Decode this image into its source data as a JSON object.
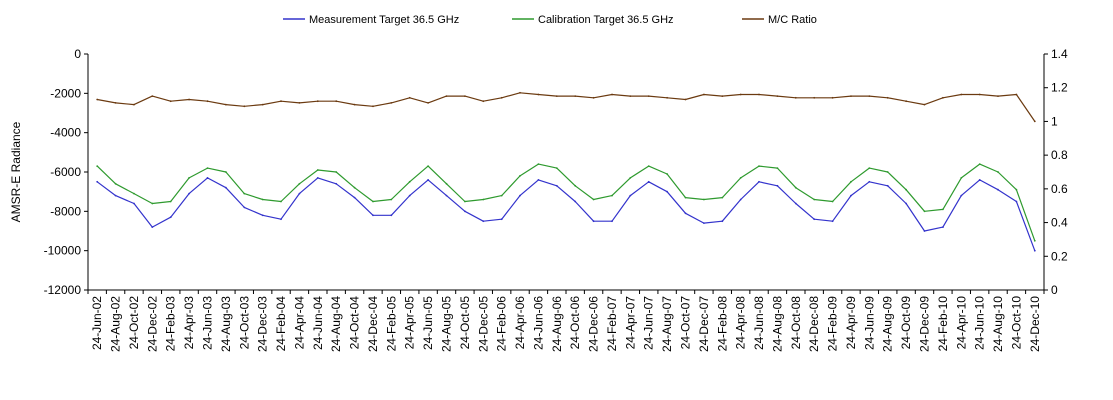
{
  "chart_data": {
    "type": "line",
    "title": "",
    "xlabel": "",
    "ylabel": "AMSR-E Radiance",
    "y2label": "",
    "ylim": [
      -12000,
      0
    ],
    "y2lim": [
      0,
      1.4
    ],
    "yticks": [
      "0",
      "-2000",
      "-4000",
      "-6000",
      "-8000",
      "-10000",
      "-12000"
    ],
    "y2ticks": [
      "1.4",
      "1.2",
      "1",
      "0.8",
      "0.6",
      "0.4",
      "0.2",
      "0"
    ],
    "grid": false,
    "legend_position": "top",
    "categories": [
      "24-Jun-02",
      "24-Aug-02",
      "24-Oct-02",
      "24-Dec-02",
      "24-Feb-03",
      "24-Apr-03",
      "24-Jun-03",
      "24-Aug-03",
      "24-Oct-03",
      "24-Dec-03",
      "24-Feb-04",
      "24-Apr-04",
      "24-Jun-04",
      "24-Aug-04",
      "24-Oct-04",
      "24-Dec-04",
      "24-Feb-05",
      "24-Apr-05",
      "24-Jun-05",
      "24-Aug-05",
      "24-Oct-05",
      "24-Dec-05",
      "24-Feb-06",
      "24-Apr-06",
      "24-Jun-06",
      "24-Aug-06",
      "24-Oct-06",
      "24-Dec-06",
      "24-Feb-07",
      "24-Apr-07",
      "24-Jun-07",
      "24-Aug-07",
      "24-Oct-07",
      "24-Dec-07",
      "24-Feb-08",
      "24-Apr-08",
      "24-Jun-08",
      "24-Aug-08",
      "24-Oct-08",
      "24-Dec-08",
      "24-Feb-09",
      "24-Apr-09",
      "24-Jun-09",
      "24-Aug-09",
      "24-Oct-09",
      "24-Dec-09",
      "24-Feb-10",
      "24-Apr-10",
      "24-Jun-10",
      "24-Aug-10",
      "24-Oct-10",
      "24-Dec-10"
    ],
    "series": [
      {
        "name": "Measurement Target 36.5 GHz",
        "axis": "left",
        "color": "#3333cc",
        "values": [
          -6500,
          -7200,
          -7600,
          -8800,
          -8300,
          -7100,
          -6300,
          -6800,
          -7800,
          -8200,
          -8400,
          -7100,
          -6300,
          -6600,
          -7300,
          -8200,
          -8200,
          -7200,
          -6400,
          -7200,
          -8000,
          -8500,
          -8400,
          -7200,
          -6400,
          -6700,
          -7500,
          -8500,
          -8500,
          -7200,
          -6500,
          -7000,
          -8100,
          -8600,
          -8500,
          -7400,
          -6500,
          -6700,
          -7600,
          -8400,
          -8500,
          -7200,
          -6500,
          -6700,
          -7600,
          -9000,
          -8800,
          -7200,
          -6400,
          -6900,
          -7500,
          -10000
        ]
      },
      {
        "name": "Calibration Target 36.5 GHz",
        "axis": "left",
        "color": "#2e9a2e",
        "values": [
          -5700,
          -6600,
          -7100,
          -7600,
          -7500,
          -6300,
          -5800,
          -6000,
          -7100,
          -7400,
          -7500,
          -6600,
          -5900,
          -6000,
          -6800,
          -7500,
          -7400,
          -6500,
          -5700,
          -6600,
          -7500,
          -7400,
          -7200,
          -6200,
          -5600,
          -5800,
          -6700,
          -7400,
          -7200,
          -6300,
          -5700,
          -6100,
          -7300,
          -7400,
          -7300,
          -6300,
          -5700,
          -5800,
          -6800,
          -7400,
          -7500,
          -6500,
          -5800,
          -6000,
          -6900,
          -8000,
          -7900,
          -6300,
          -5600,
          -6000,
          -6900,
          -9500
        ]
      },
      {
        "name": "M/C Ratio",
        "axis": "right",
        "color": "#6b3a10",
        "values": [
          1.13,
          1.11,
          1.1,
          1.15,
          1.12,
          1.13,
          1.12,
          1.1,
          1.09,
          1.1,
          1.12,
          1.11,
          1.12,
          1.12,
          1.1,
          1.09,
          1.11,
          1.14,
          1.11,
          1.15,
          1.15,
          1.12,
          1.14,
          1.17,
          1.16,
          1.15,
          1.15,
          1.14,
          1.16,
          1.15,
          1.15,
          1.14,
          1.13,
          1.16,
          1.15,
          1.16,
          1.16,
          1.15,
          1.14,
          1.14,
          1.14,
          1.15,
          1.15,
          1.14,
          1.12,
          1.1,
          1.14,
          1.16,
          1.16,
          1.15,
          1.16,
          1.0
        ]
      }
    ]
  }
}
